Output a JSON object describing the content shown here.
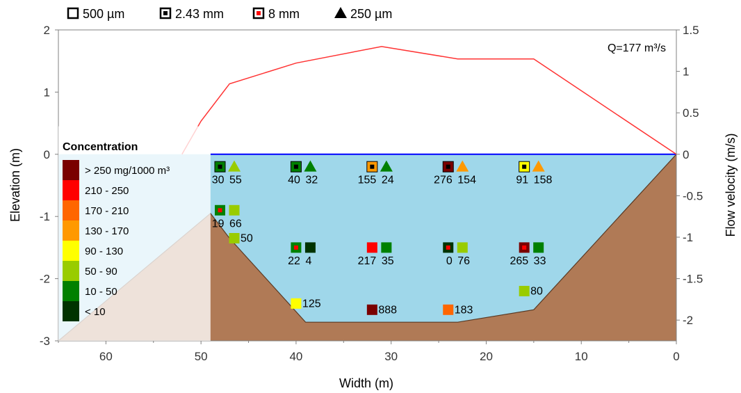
{
  "chart_data": {
    "type": "scatter",
    "title": "",
    "xlabel": "Width (m)",
    "ylabel": "Elevation (m)",
    "y2label": "Flow velocity (m/s)",
    "annotation": "Q=177 m³/s",
    "xlim": [
      65,
      0
    ],
    "ylim": [
      -3,
      2
    ],
    "y2lim": [
      -2.25,
      1.5
    ],
    "x_ticks": [
      "60",
      "50",
      "40",
      "30",
      "20",
      "10",
      "0"
    ],
    "x_tick_values": [
      60,
      50,
      40,
      30,
      20,
      10,
      0
    ],
    "y_ticks": [
      "2",
      "1",
      "0",
      "-1",
      "-2",
      "-3"
    ],
    "y_tick_values": [
      2,
      1,
      0,
      -1,
      -2,
      -3
    ],
    "y2_ticks": [
      "1.5",
      "1",
      "0.5",
      "0",
      "-0.5",
      "-1",
      "-1.5",
      "-2"
    ],
    "y2_tick_values": [
      1.5,
      1,
      0.5,
      0,
      -0.5,
      -1,
      -1.5,
      -2
    ],
    "legend_top": [
      {
        "label": "500 µm",
        "marker": "square-open"
      },
      {
        "label": "2.43 mm",
        "marker": "square-dot"
      },
      {
        "label": "8 mm",
        "marker": "square-red-dot"
      },
      {
        "label": "250 µm",
        "marker": "triangle"
      }
    ],
    "concentration_legend": {
      "title": "Concentration",
      "classes": [
        {
          "label": "> 250 mg/1000 m³",
          "color": "#7a0000"
        },
        {
          "label": "210 - 250",
          "color": "#ff0000"
        },
        {
          "label": "170 - 210",
          "color": "#ff6600"
        },
        {
          "label": "130 - 170",
          "color": "#ff9900"
        },
        {
          "label": "90 - 130",
          "color": "#ffff00"
        },
        {
          "label": "50 - 90",
          "color": "#99cc00"
        },
        {
          "label": "10 - 50",
          "color": "#008000"
        },
        {
          "label": "< 10",
          "color": "#003300"
        }
      ]
    },
    "bed_profile": {
      "x": [
        65,
        49,
        47,
        39,
        23,
        15,
        0
      ],
      "y": [
        -3,
        -0.95,
        -1.35,
        -2.7,
        -2.7,
        -2.5,
        0
      ]
    },
    "water_surface": 0,
    "velocity_profile": {
      "x": [
        52,
        50,
        47,
        40,
        31,
        23,
        15,
        0
      ],
      "v": [
        0,
        0.4,
        0.85,
        1.1,
        1.3,
        1.15,
        1.15,
        0
      ]
    },
    "samples": [
      {
        "x": 48,
        "y": -0.2,
        "marker": "square-dot",
        "color": "#008000",
        "value": "30"
      },
      {
        "x": 46.5,
        "y": -0.2,
        "marker": "triangle",
        "color": "#99cc00",
        "value": "55"
      },
      {
        "x": 40,
        "y": -0.2,
        "marker": "square-dot",
        "color": "#008000",
        "value": "40"
      },
      {
        "x": 38.5,
        "y": -0.2,
        "marker": "triangle",
        "color": "#008000",
        "value": "32"
      },
      {
        "x": 32,
        "y": -0.2,
        "marker": "square-dot",
        "color": "#ff9900",
        "value": "155"
      },
      {
        "x": 30.5,
        "y": -0.2,
        "marker": "triangle",
        "color": "#008000",
        "value": "24"
      },
      {
        "x": 24,
        "y": -0.2,
        "marker": "square-dot",
        "color": "#7a0000",
        "value": "276"
      },
      {
        "x": 22.5,
        "y": -0.2,
        "marker": "triangle",
        "color": "#ff9900",
        "value": "154"
      },
      {
        "x": 16,
        "y": -0.2,
        "marker": "square-dot",
        "color": "#ffff00",
        "value": "91"
      },
      {
        "x": 14.5,
        "y": -0.2,
        "marker": "triangle",
        "color": "#ff9900",
        "value": "158"
      },
      {
        "x": 48,
        "y": -0.9,
        "marker": "square-red-dot",
        "color": "#008000",
        "value": "19"
      },
      {
        "x": 46.5,
        "y": -0.9,
        "marker": "square-open",
        "color": "#99cc00",
        "value": "66"
      },
      {
        "x": 46.5,
        "y": -1.35,
        "marker": "square-open",
        "color": "#99cc00",
        "value": "50"
      },
      {
        "x": 40,
        "y": -1.5,
        "marker": "square-red-dot",
        "color": "#008000",
        "value": "22"
      },
      {
        "x": 38.5,
        "y": -1.5,
        "marker": "square-open",
        "color": "#003300",
        "value": "4"
      },
      {
        "x": 32,
        "y": -1.5,
        "marker": "square-open",
        "color": "#ff0000",
        "value": "217"
      },
      {
        "x": 30.5,
        "y": -1.5,
        "marker": "square-open",
        "color": "#008000",
        "value": "35"
      },
      {
        "x": 24,
        "y": -1.5,
        "marker": "square-red-dot",
        "color": "#003300",
        "value": "0"
      },
      {
        "x": 22.5,
        "y": -1.5,
        "marker": "square-open",
        "color": "#99cc00",
        "value": "76"
      },
      {
        "x": 16,
        "y": -1.5,
        "marker": "square-red-dot",
        "color": "#7a0000",
        "value": "265"
      },
      {
        "x": 14.5,
        "y": -1.5,
        "marker": "square-open",
        "color": "#008000",
        "value": "33"
      },
      {
        "x": 16,
        "y": -2.2,
        "marker": "square-open",
        "color": "#99cc00",
        "value": "80"
      },
      {
        "x": 40,
        "y": -2.4,
        "marker": "square-open",
        "color": "#ffff00",
        "value": "125"
      },
      {
        "x": 32,
        "y": -2.5,
        "marker": "square-open",
        "color": "#7a0000",
        "value": "888"
      },
      {
        "x": 24,
        "y": -2.5,
        "marker": "square-open",
        "color": "#ff6600",
        "value": "183"
      }
    ]
  }
}
